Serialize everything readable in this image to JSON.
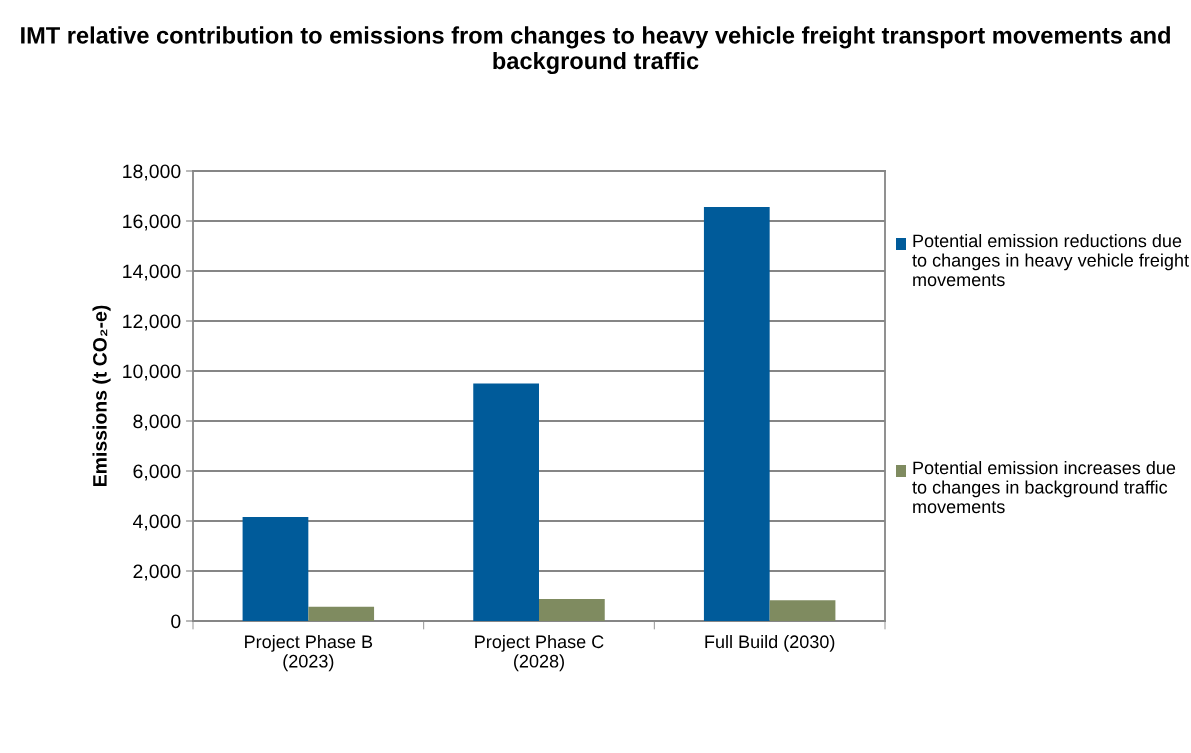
{
  "chart_data": {
    "type": "bar",
    "title": "IMT relative contribution to emissions from changes to heavy vehicle freight transport movements and background traffic",
    "ylabel": "Emissions (t CO₂-e)",
    "categories": [
      "Project Phase B\n(2023)",
      "Project Phase C\n(2028)",
      "Full Build (2030)"
    ],
    "series": [
      {
        "name": "Potential emission reductions due to changes in heavy vehicle freight movements",
        "color": "#005b9a",
        "values": [
          4160,
          9500,
          16560
        ]
      },
      {
        "name": "Potential emission increases due to changes in background traffic movements",
        "color": "#7f8b60",
        "values": [
          570,
          880,
          830
        ]
      }
    ],
    "ylim": [
      0,
      18000
    ],
    "yticks": [
      {
        "value": 0,
        "label": "0"
      },
      {
        "value": 2000,
        "label": "2,000"
      },
      {
        "value": 4000,
        "label": "4,000"
      },
      {
        "value": 6000,
        "label": "6,000"
      },
      {
        "value": 8000,
        "label": "8,000"
      },
      {
        "value": 10000,
        "label": "10,000"
      },
      {
        "value": 12000,
        "label": "12,000"
      },
      {
        "value": 14000,
        "label": "14,000"
      },
      {
        "value": 16000,
        "label": "16,000"
      },
      {
        "value": 18000,
        "label": "18,000"
      }
    ],
    "grid": "y",
    "legend": "right"
  }
}
